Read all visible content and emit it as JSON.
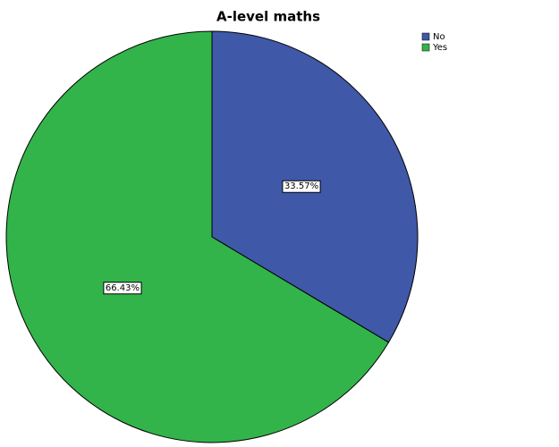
{
  "chart_data": {
    "type": "pie",
    "title": "A-level maths",
    "categories": [
      "No",
      "Yes"
    ],
    "values": [
      33.57,
      66.43
    ],
    "value_labels": [
      "33.57%",
      "66.43%"
    ],
    "colors": [
      "#3f58a8",
      "#33b44a"
    ],
    "legend": "top-right"
  }
}
